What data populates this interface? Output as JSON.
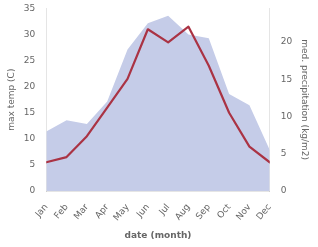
{
  "chart_data": {
    "type": "line",
    "xlabel": "date (month)",
    "ylabel": "max temp (C)",
    "y2label": "med. precipitation (kg/m2)",
    "categories": [
      "Jan",
      "Feb",
      "Mar",
      "Apr",
      "May",
      "Jun",
      "Jul",
      "Aug",
      "Sep",
      "Oct",
      "Nov",
      "Dec"
    ],
    "series": [
      {
        "type": "area",
        "axis": "y2",
        "color": "#c5cce8",
        "values": [
          8.0,
          9.5,
          9.0,
          12.0,
          19.0,
          22.5,
          23.5,
          21.0,
          20.5,
          13.0,
          11.5,
          5.5
        ]
      },
      {
        "type": "line",
        "axis": "y",
        "color": "#aa3344",
        "values": [
          5.5,
          6.5,
          10.5,
          16.0,
          21.5,
          31.0,
          28.5,
          31.5,
          24.0,
          15.0,
          8.5,
          5.5
        ]
      }
    ],
    "ylim": [
      0,
      35
    ],
    "yticks": [
      0,
      5,
      10,
      15,
      20,
      25,
      30,
      35
    ],
    "y2lim": [
      0,
      24.5
    ],
    "y2ticks": [
      0,
      5,
      10,
      15,
      20
    ],
    "grid": false
  }
}
